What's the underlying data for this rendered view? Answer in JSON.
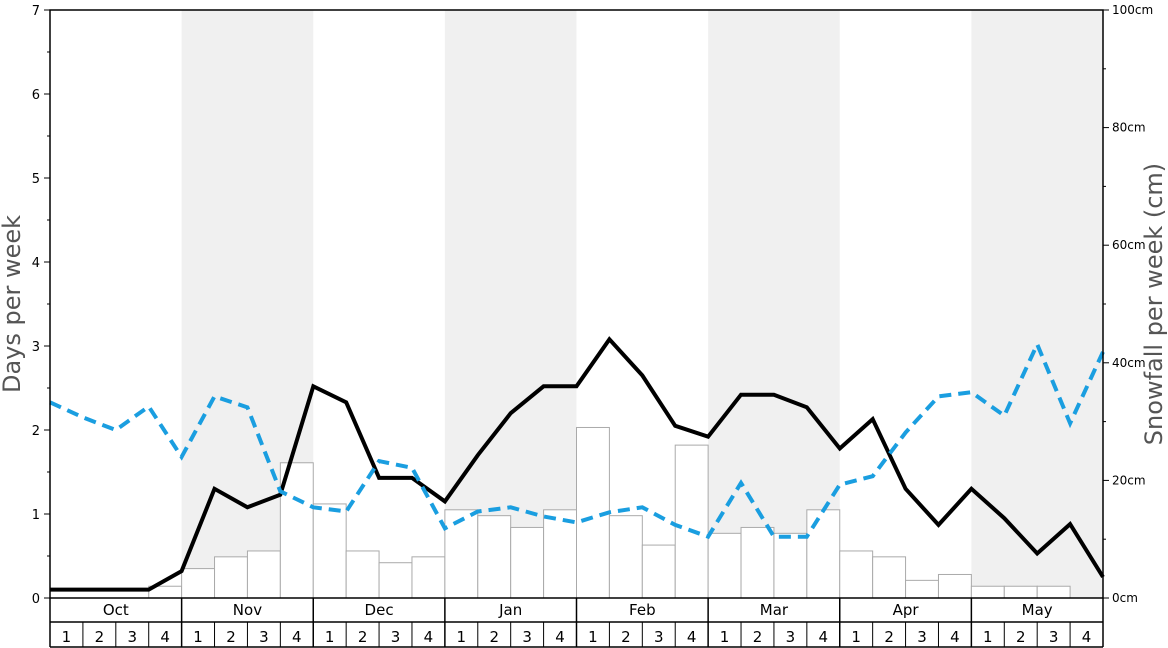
{
  "chart_data": {
    "type": "bar",
    "months": [
      "Oct",
      "Nov",
      "Dec",
      "Jan",
      "Feb",
      "Mar",
      "Apr",
      "May"
    ],
    "weeks": [
      "1",
      "2",
      "3",
      "4"
    ],
    "ylabel_left": "Days per week",
    "ylabel_right": "Snowfall per week (cm)",
    "ylim_left": [
      0,
      7
    ],
    "ylim_right": [
      0,
      100
    ],
    "left_ticks": [
      "0",
      "1",
      "2",
      "3",
      "4",
      "5",
      "6",
      "7"
    ],
    "right_ticks": [
      "0cm",
      "20cm",
      "40cm",
      "60cm",
      "80cm",
      "100cm"
    ],
    "shaded_months": [
      "Nov",
      "Jan",
      "Mar",
      "May"
    ],
    "colors": {
      "bar_fill": "#ffffff",
      "bar_stroke": "#aaaaaa",
      "line_solid": "#000000",
      "line_dashed": "#1a9ee0",
      "band": "#f0f0f0"
    },
    "series": [
      {
        "style": "bars",
        "axis": "right",
        "values": [
          0,
          0,
          0,
          2,
          5,
          7,
          8,
          23,
          16,
          8,
          6,
          7,
          15,
          14,
          12,
          15,
          29,
          14,
          9,
          26,
          11,
          12,
          11,
          15,
          8,
          7,
          3,
          4,
          2,
          2,
          2,
          0
        ]
      },
      {
        "style": "solid-line",
        "axis": "left",
        "values": [
          0.1,
          0.1,
          0.1,
          0.1,
          0.32,
          1.3,
          1.08,
          1.23,
          2.52,
          2.33,
          1.43,
          1.43,
          1.15,
          1.7,
          2.2,
          2.52,
          2.52,
          3.08,
          2.65,
          2.05,
          1.92,
          2.42,
          2.42,
          2.27,
          1.78,
          2.13,
          1.3,
          0.87,
          1.3,
          0.95,
          0.53,
          0.88,
          0.25
        ]
      },
      {
        "style": "dashed-line",
        "axis": "left",
        "values": [
          2.33,
          2.15,
          2.0,
          2.28,
          1.68,
          2.4,
          2.27,
          1.27,
          1.08,
          1.03,
          1.63,
          1.55,
          0.83,
          1.03,
          1.08,
          0.97,
          0.9,
          1.02,
          1.08,
          0.87,
          0.73,
          1.37,
          0.73,
          0.73,
          1.35,
          1.45,
          1.97,
          2.4,
          2.45,
          2.17,
          3.02,
          2.08,
          2.93
        ]
      }
    ]
  }
}
